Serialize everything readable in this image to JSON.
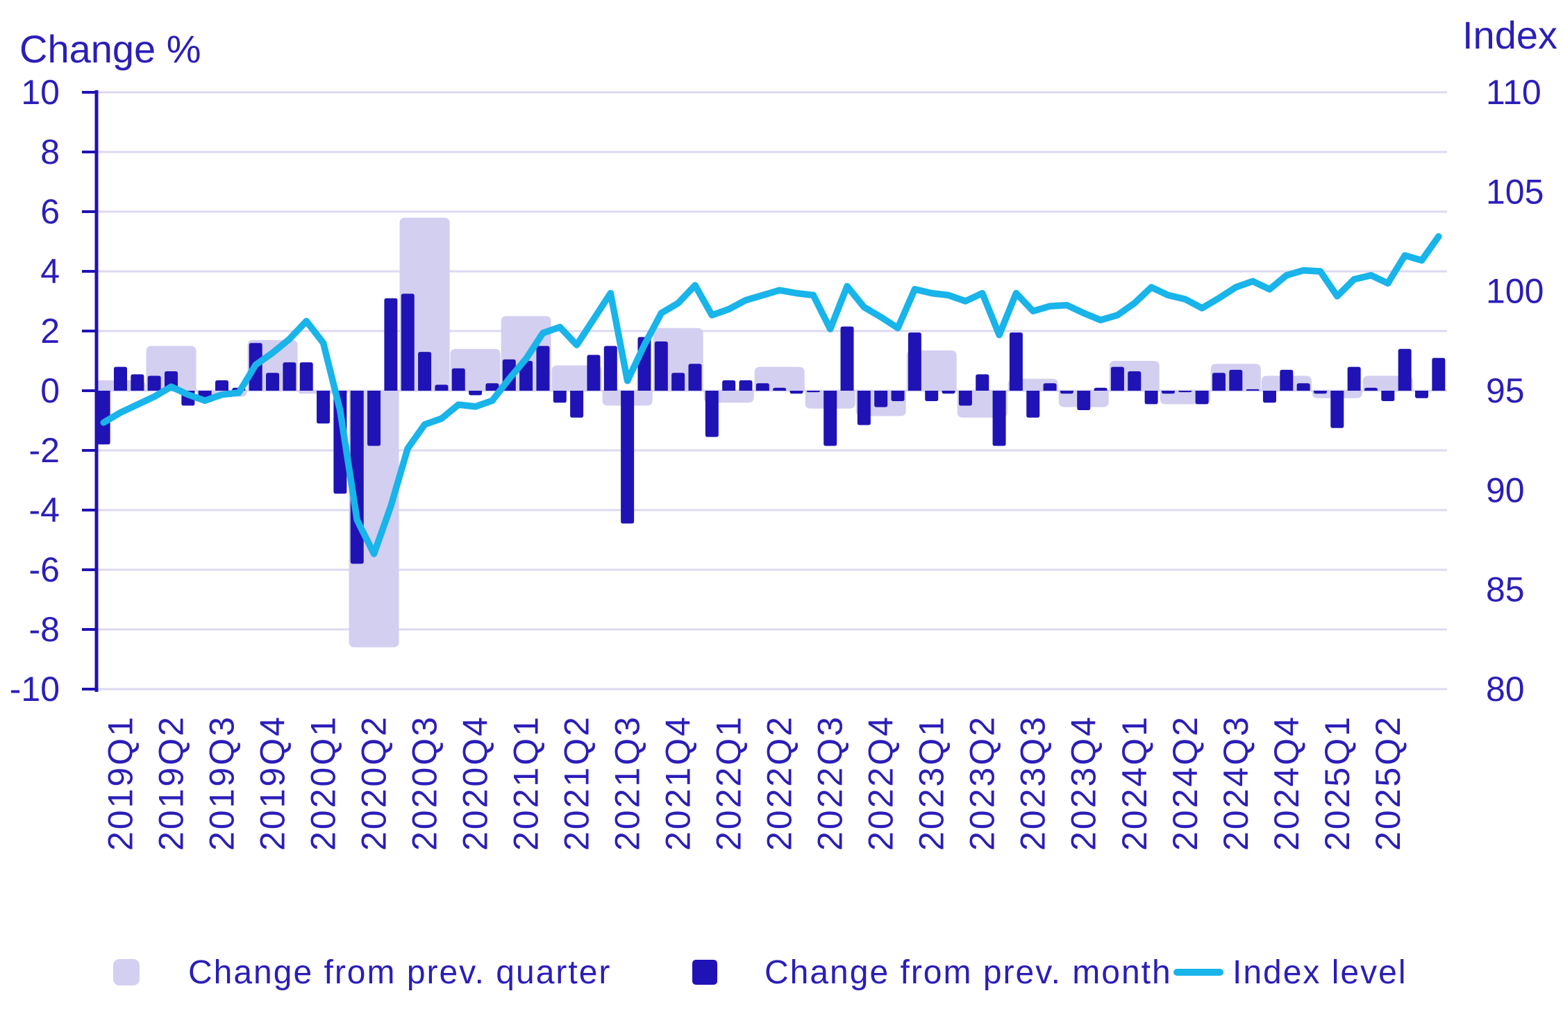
{
  "axis_titles": {
    "left": "Change %",
    "right": "Index"
  },
  "legend": {
    "quarter": "Change from prev. quarter",
    "month": "Change from prev. month",
    "index": "Index level"
  },
  "colors": {
    "month_bar": "#1f13b5",
    "quarter_bar": "#d3cff0",
    "index_line": "#18b4ea",
    "grid": "#dcdaf2",
    "axis": "#2012b4",
    "text": "#2b1eb8",
    "background": "#ffffff"
  },
  "chart_data": {
    "type": "combo (quarterly bars + monthly bars + index line, dual y-axis)",
    "x_quarter_labels": [
      "2019Q1",
      "2019Q2",
      "2019Q3",
      "2019Q4",
      "2020Q1",
      "2020Q2",
      "2020Q3",
      "2020Q4",
      "2021Q1",
      "2021Q2",
      "2021Q3",
      "2021Q4",
      "2022Q1",
      "2022Q2",
      "2022Q3",
      "2022Q4",
      "2023Q1",
      "2023Q2",
      "2023Q3",
      "2023Q4",
      "2024Q1",
      "2024Q2",
      "2024Q3",
      "2024Q4",
      "2025Q1",
      "2025Q2"
    ],
    "months": [
      "2019-01",
      "2019-02",
      "2019-03",
      "2019-04",
      "2019-05",
      "2019-06",
      "2019-07",
      "2019-08",
      "2019-09",
      "2019-10",
      "2019-11",
      "2019-12",
      "2020-01",
      "2020-02",
      "2020-03",
      "2020-04",
      "2020-05",
      "2020-06",
      "2020-07",
      "2020-08",
      "2020-09",
      "2020-10",
      "2020-11",
      "2020-12",
      "2021-01",
      "2021-02",
      "2021-03",
      "2021-04",
      "2021-05",
      "2021-06",
      "2021-07",
      "2021-08",
      "2021-09",
      "2021-10",
      "2021-11",
      "2021-12",
      "2022-01",
      "2022-02",
      "2022-03",
      "2022-04",
      "2022-05",
      "2022-06",
      "2022-07",
      "2022-08",
      "2022-09",
      "2022-10",
      "2022-11",
      "2022-12",
      "2023-01",
      "2023-02",
      "2023-03",
      "2023-04",
      "2023-05",
      "2023-06",
      "2023-07",
      "2023-08",
      "2023-09",
      "2023-10",
      "2023-11",
      "2023-12",
      "2024-01",
      "2024-02",
      "2024-03",
      "2024-04",
      "2024-05",
      "2024-06",
      "2024-07",
      "2024-08",
      "2024-09",
      "2024-10",
      "2024-11",
      "2024-12",
      "2025-01",
      "2025-02",
      "2025-03",
      "2025-04",
      "2025-05",
      "2025-06",
      "2025-07",
      "2025-08"
    ],
    "series": [
      {
        "name": "Change from prev. quarter",
        "type": "bar",
        "axis": "left",
        "per": "quarter",
        "unit": "%",
        "values": [
          0.35,
          1.5,
          -0.2,
          1.7,
          -0.1,
          -8.6,
          5.8,
          1.4,
          2.5,
          0.85,
          -0.5,
          2.1,
          -0.4,
          0.8,
          -0.6,
          -0.85,
          1.35,
          -0.9,
          0.4,
          -0.55,
          1.0,
          -0.45,
          0.9,
          0.5,
          -0.25,
          0.5
        ]
      },
      {
        "name": "Change from prev. month",
        "type": "bar",
        "axis": "left",
        "per": "month",
        "unit": "%",
        "values": [
          -1.8,
          0.8,
          0.55,
          0.5,
          0.65,
          -0.5,
          -0.35,
          0.35,
          0.1,
          1.6,
          0.6,
          0.95,
          0.95,
          -1.1,
          -3.45,
          -5.8,
          -1.85,
          3.1,
          3.25,
          1.3,
          0.2,
          0.75,
          -0.15,
          0.25,
          1.05,
          1.0,
          1.5,
          -0.4,
          -0.9,
          1.2,
          1.5,
          -4.45,
          1.8,
          1.65,
          0.6,
          0.9,
          -1.55,
          0.35,
          0.35,
          0.25,
          0.1,
          -0.1,
          -0.05,
          -1.85,
          2.15,
          -1.15,
          -0.55,
          -0.35,
          1.95,
          -0.35,
          -0.1,
          -0.5,
          0.55,
          -1.85,
          1.95,
          -0.9,
          0.25,
          -0.1,
          -0.65,
          0.1,
          0.8,
          0.65,
          -0.45,
          -0.1,
          -0.05,
          -0.45,
          0.6,
          0.7,
          0.05,
          -0.4,
          0.7,
          0.25,
          -0.1,
          -1.25,
          0.8,
          0.1,
          -0.35,
          1.4,
          -0.25,
          1.1
        ]
      },
      {
        "name": "Index level",
        "type": "line",
        "axis": "right",
        "per": "month",
        "values": [
          93.4,
          93.9,
          94.3,
          94.7,
          95.2,
          94.8,
          94.5,
          94.8,
          94.9,
          96.3,
          96.9,
          97.6,
          98.5,
          97.4,
          94.0,
          88.5,
          86.8,
          89.2,
          92.1,
          93.3,
          93.6,
          94.3,
          94.2,
          94.5,
          95.6,
          96.6,
          97.9,
          98.2,
          97.3,
          98.6,
          99.9,
          95.5,
          97.3,
          98.9,
          99.4,
          100.3,
          98.8,
          99.1,
          99.55,
          99.8,
          100.05,
          99.9,
          99.8,
          98.1,
          100.25,
          99.2,
          98.7,
          98.15,
          100.1,
          99.9,
          99.8,
          99.5,
          99.9,
          97.8,
          99.9,
          99.0,
          99.25,
          99.3,
          98.9,
          98.55,
          98.8,
          99.4,
          100.2,
          99.8,
          99.6,
          99.15,
          99.65,
          100.2,
          100.5,
          100.1,
          100.8,
          101.05,
          101.0,
          99.75,
          100.6,
          100.8,
          100.4,
          101.8,
          101.55,
          102.75
        ]
      }
    ],
    "left_axis": {
      "title": "Change %",
      "ticks": [
        10,
        8,
        6,
        4,
        2,
        0,
        -2,
        -4,
        -6,
        -8,
        -10
      ],
      "range": [
        -10,
        10
      ]
    },
    "right_axis": {
      "title": "Index",
      "ticks": [
        110,
        105,
        100,
        95,
        90,
        85,
        80
      ],
      "range": [
        80,
        110
      ]
    },
    "grid": "horizontal gridlines only",
    "legend_position": "bottom center"
  }
}
